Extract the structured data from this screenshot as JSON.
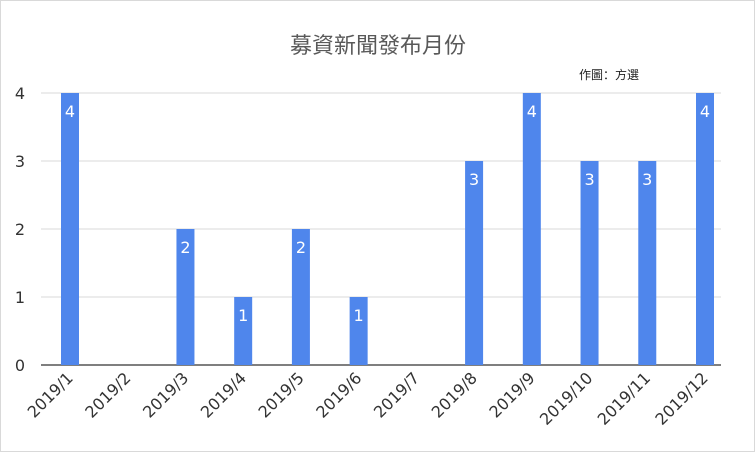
{
  "chart_data": {
    "type": "bar",
    "title": "募資新聞發布月份",
    "note": "作圖：方選",
    "categories": [
      "2019/1",
      "2019/2",
      "2019/3",
      "2019/4",
      "2019/5",
      "2019/6",
      "2019/7",
      "2019/8",
      "2019/9",
      "2019/10",
      "2019/11",
      "2019/12"
    ],
    "values": [
      4,
      0,
      2,
      1,
      2,
      1,
      0,
      3,
      4,
      3,
      3,
      4
    ],
    "yticks": [
      0,
      1,
      2,
      3,
      4
    ],
    "ylim": [
      0,
      4
    ],
    "grid": true,
    "legend": false,
    "bar_color": "#4f86ec",
    "grid_color": "#d9d9d9",
    "axis_color": "#333333"
  }
}
